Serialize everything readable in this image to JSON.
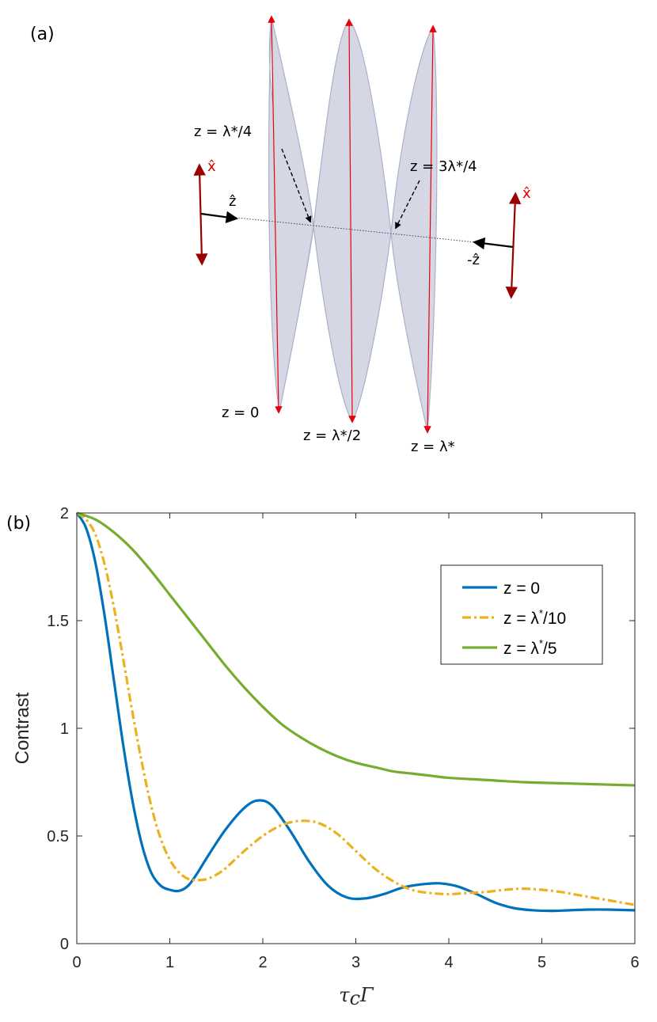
{
  "figure": {
    "panel_a_label": "(a)",
    "panel_b_label": "(b)"
  },
  "diagram": {
    "labels": {
      "z0": "z = 0",
      "z_quarter": "z = λ*/4",
      "z_half": "z = λ*/2",
      "z_three_quarter": "z = 3λ*/4",
      "z_full": "z = λ*",
      "x_hat_left": "x̂",
      "x_hat_right": "x̂",
      "z_hat": "ẑ",
      "minus_z_hat": "-ẑ"
    },
    "colors": {
      "lobe_fill": "#d5d8e4",
      "lobe_stroke": "#a9b0c8",
      "red_arrow": "#e8000b",
      "dark_red_arrow": "#b00000"
    }
  },
  "chart_data": {
    "type": "line",
    "title": "",
    "xlabel": "τ_c Γ",
    "xlabel_main": "τ",
    "xlabel_sub": "c",
    "xlabel_tail": "Γ",
    "ylabel": "Contrast",
    "xlim": [
      0,
      6
    ],
    "ylim": [
      0,
      2
    ],
    "xticks": [
      "0",
      "1",
      "2",
      "3",
      "4",
      "5",
      "6"
    ],
    "yticks": [
      "0",
      "0.5",
      "1",
      "1.5",
      "2"
    ],
    "grid": false,
    "legend_position": "top-right",
    "series": [
      {
        "name": "z = 0",
        "legend_prefix": "z = 0",
        "legend_sup": "",
        "legend_suffix": "",
        "color": "#0072bd",
        "dash": "solid",
        "x": [
          0,
          0.1,
          0.2,
          0.3,
          0.4,
          0.5,
          0.6,
          0.7,
          0.8,
          0.9,
          1.0,
          1.1,
          1.2,
          1.3,
          1.4,
          1.6,
          1.8,
          1.95,
          2.1,
          2.3,
          2.5,
          2.7,
          2.9,
          3.1,
          3.3,
          3.5,
          3.7,
          3.9,
          4.1,
          4.3,
          4.5,
          4.7,
          4.9,
          5.1,
          5.3,
          5.5,
          5.7,
          6.0
        ],
        "y": [
          2.0,
          1.93,
          1.77,
          1.52,
          1.22,
          0.92,
          0.66,
          0.46,
          0.33,
          0.27,
          0.25,
          0.245,
          0.27,
          0.33,
          0.4,
          0.53,
          0.63,
          0.665,
          0.64,
          0.52,
          0.38,
          0.27,
          0.215,
          0.21,
          0.23,
          0.26,
          0.275,
          0.28,
          0.265,
          0.23,
          0.19,
          0.165,
          0.155,
          0.152,
          0.155,
          0.158,
          0.158,
          0.155
        ]
      },
      {
        "name": "z = λ*/10",
        "legend_prefix": "z = λ",
        "legend_sup": "*",
        "legend_suffix": "/10",
        "color": "#edb120",
        "dash": "dashdot",
        "x": [
          0,
          0.1,
          0.2,
          0.3,
          0.4,
          0.5,
          0.6,
          0.7,
          0.8,
          0.9,
          1.0,
          1.1,
          1.2,
          1.3,
          1.4,
          1.5,
          1.6,
          1.8,
          2.0,
          2.2,
          2.4,
          2.6,
          2.8,
          3.0,
          3.2,
          3.4,
          3.6,
          3.8,
          4.0,
          4.2,
          4.4,
          4.6,
          4.8,
          5.0,
          5.2,
          5.4,
          5.6,
          5.8,
          6.0
        ],
        "y": [
          2.0,
          1.97,
          1.9,
          1.76,
          1.56,
          1.32,
          1.07,
          0.84,
          0.64,
          0.49,
          0.39,
          0.33,
          0.3,
          0.295,
          0.3,
          0.32,
          0.35,
          0.43,
          0.5,
          0.55,
          0.57,
          0.56,
          0.51,
          0.43,
          0.35,
          0.29,
          0.25,
          0.235,
          0.23,
          0.235,
          0.24,
          0.25,
          0.255,
          0.25,
          0.24,
          0.225,
          0.21,
          0.195,
          0.18
        ]
      },
      {
        "name": "z = λ*/5",
        "legend_prefix": "z = λ",
        "legend_sup": "*",
        "legend_suffix": "/5",
        "color": "#77ac30",
        "dash": "solid",
        "x": [
          0,
          0.2,
          0.4,
          0.6,
          0.8,
          1.0,
          1.2,
          1.4,
          1.6,
          1.8,
          2.0,
          2.2,
          2.4,
          2.6,
          2.8,
          3.0,
          3.2,
          3.4,
          3.6,
          3.8,
          4.0,
          4.4,
          4.8,
          5.2,
          5.6,
          6.0
        ],
        "y": [
          2.0,
          1.97,
          1.91,
          1.83,
          1.73,
          1.62,
          1.51,
          1.4,
          1.29,
          1.19,
          1.1,
          1.02,
          0.96,
          0.91,
          0.87,
          0.84,
          0.82,
          0.8,
          0.79,
          0.78,
          0.77,
          0.76,
          0.75,
          0.745,
          0.74,
          0.735
        ]
      }
    ]
  }
}
